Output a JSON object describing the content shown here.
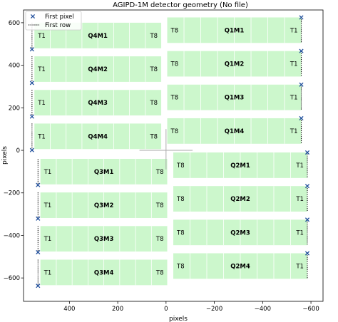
{
  "chart_data": {
    "type": "scatter",
    "title": "AGIPD-1M detector geometry (No file)",
    "xlabel": "pixels",
    "ylabel": "pixels",
    "xlim": [
      590,
      -650
    ],
    "ylim": [
      -710,
      660
    ],
    "xticks": [
      400,
      200,
      0,
      -200,
      -400,
      -600
    ],
    "xtick_labels": [
      "400",
      "200",
      "0",
      "−200",
      "−400",
      "−600"
    ],
    "yticks": [
      600,
      400,
      200,
      0,
      -200,
      -400,
      -600
    ],
    "ytick_labels": [
      "600",
      "400",
      "200",
      "0",
      "−200",
      "−400",
      "−600"
    ],
    "x_inverted": true,
    "grid": false,
    "legend": {
      "placement": "top-left",
      "entries": [
        {
          "label": "First pixel",
          "marker": "x",
          "color": "#1f4e9c"
        },
        {
          "label": "First row",
          "style": "dotted",
          "color": "#000000"
        }
      ]
    },
    "colors": {
      "tile_fill": "#ccf7cc",
      "tile_divider": "#ffffff",
      "marker": "#1f4e9c",
      "center_cross": "#aaaaaa"
    },
    "modules": [
      {
        "name": "Q4M1",
        "x0": 545,
        "x1": 20,
        "y0": 480,
        "y1": 600,
        "tile_left": "T1",
        "tile_right": "T8",
        "first_x": 555,
        "first_y": 475
      },
      {
        "name": "Q4M2",
        "x0": 545,
        "x1": 20,
        "y0": 322,
        "y1": 442,
        "tile_left": "T1",
        "tile_right": "T8",
        "first_x": 555,
        "first_y": 317
      },
      {
        "name": "Q4M3",
        "x0": 545,
        "x1": 20,
        "y0": 164,
        "y1": 284,
        "tile_left": "T1",
        "tile_right": "T8",
        "first_x": 555,
        "first_y": 159
      },
      {
        "name": "Q4M4",
        "x0": 545,
        "x1": 20,
        "y0": 6,
        "y1": 126,
        "tile_left": "T1",
        "tile_right": "T8",
        "first_x": 555,
        "first_y": 1
      },
      {
        "name": "Q1M1",
        "x0": -560,
        "x1": -5,
        "y0": 505,
        "y1": 625,
        "tile_left": "T8",
        "tile_right": "T1",
        "first_x": -560,
        "first_y": 625
      },
      {
        "name": "Q1M2",
        "x0": -560,
        "x1": -5,
        "y0": 347,
        "y1": 467,
        "tile_left": "T8",
        "tile_right": "T1",
        "first_x": -560,
        "first_y": 467
      },
      {
        "name": "Q1M3",
        "x0": -560,
        "x1": -5,
        "y0": 189,
        "y1": 309,
        "tile_left": "T8",
        "tile_right": "T1",
        "first_x": -560,
        "first_y": 309
      },
      {
        "name": "Q1M4",
        "x0": -560,
        "x1": -5,
        "y0": 31,
        "y1": 151,
        "tile_left": "T8",
        "tile_right": "T1",
        "first_x": -560,
        "first_y": 151
      },
      {
        "name": "Q3M1",
        "x0": 520,
        "x1": -5,
        "y0": -160,
        "y1": -40,
        "tile_left": "T1",
        "tile_right": "T8",
        "first_x": 530,
        "first_y": -163
      },
      {
        "name": "Q3M2",
        "x0": 520,
        "x1": -5,
        "y0": -318,
        "y1": -198,
        "tile_left": "T1",
        "tile_right": "T8",
        "first_x": 530,
        "first_y": -321
      },
      {
        "name": "Q3M3",
        "x0": 520,
        "x1": -5,
        "y0": -476,
        "y1": -356,
        "tile_left": "T1",
        "tile_right": "T8",
        "first_x": 530,
        "first_y": -479
      },
      {
        "name": "Q3M4",
        "x0": 520,
        "x1": -5,
        "y0": -634,
        "y1": -514,
        "tile_left": "T1",
        "tile_right": "T8",
        "first_x": 530,
        "first_y": -637
      },
      {
        "name": "Q2M1",
        "x0": -585,
        "x1": -30,
        "y0": -130,
        "y1": -10,
        "tile_left": "T8",
        "tile_right": "T1",
        "first_x": -585,
        "first_y": -10
      },
      {
        "name": "Q2M2",
        "x0": -585,
        "x1": -30,
        "y0": -288,
        "y1": -168,
        "tile_left": "T8",
        "tile_right": "T1",
        "first_x": -585,
        "first_y": -168
      },
      {
        "name": "Q2M3",
        "x0": -585,
        "x1": -30,
        "y0": -446,
        "y1": -326,
        "tile_left": "T8",
        "tile_right": "T1",
        "first_x": -585,
        "first_y": -326
      },
      {
        "name": "Q2M4",
        "x0": -585,
        "x1": -30,
        "y0": -604,
        "y1": -484,
        "tile_left": "T8",
        "tile_right": "T1",
        "first_x": -585,
        "first_y": -484
      }
    ],
    "center_cross": {
      "x_range": [
        110,
        -110
      ],
      "y_range": [
        -90,
        100
      ]
    }
  }
}
